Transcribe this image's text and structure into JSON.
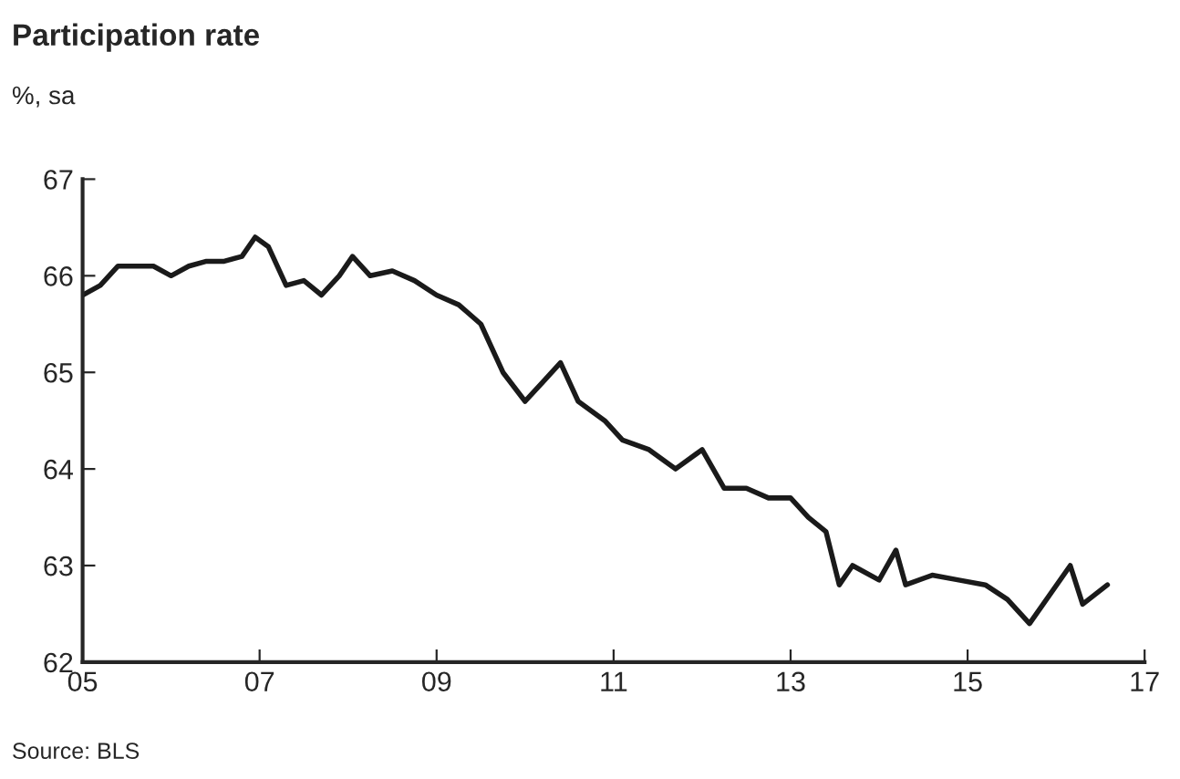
{
  "chart_data": {
    "type": "line",
    "title": "Participation rate",
    "subtitle": "%, sa",
    "x": [
      2005.0,
      2005.2,
      2005.4,
      2005.6,
      2005.8,
      2006.0,
      2006.2,
      2006.4,
      2006.6,
      2006.8,
      2006.95,
      2007.1,
      2007.3,
      2007.5,
      2007.7,
      2007.9,
      2008.05,
      2008.25,
      2008.5,
      2008.75,
      2009.0,
      2009.25,
      2009.5,
      2009.75,
      2010.0,
      2010.2,
      2010.4,
      2010.6,
      2010.9,
      2011.1,
      2011.4,
      2011.7,
      2012.0,
      2012.25,
      2012.5,
      2012.75,
      2013.0,
      2013.2,
      2013.4,
      2013.55,
      2013.7,
      2014.0,
      2014.19,
      2014.3,
      2014.6,
      2014.9,
      2015.2,
      2015.45,
      2015.7,
      2016.16,
      2016.3,
      2016.58
    ],
    "series": [
      {
        "color": "#1a1a1a",
        "values": [
          65.8,
          65.9,
          66.1,
          66.1,
          66.1,
          66.0,
          66.1,
          66.15,
          66.15,
          66.2,
          66.4,
          66.3,
          65.9,
          65.95,
          65.8,
          66.0,
          66.2,
          66.0,
          66.05,
          65.95,
          65.8,
          65.7,
          65.5,
          65.0,
          64.7,
          64.9,
          65.1,
          64.7,
          64.5,
          64.3,
          64.2,
          64.0,
          64.2,
          63.8,
          63.8,
          63.7,
          63.7,
          63.5,
          63.35,
          62.8,
          63.0,
          62.85,
          63.16,
          62.8,
          62.9,
          62.85,
          62.8,
          62.65,
          62.4,
          63.0,
          62.6,
          62.8
        ]
      }
    ],
    "xlim": [
      2005,
      2017
    ],
    "xticks": [
      {
        "value": 2005,
        "label": "05"
      },
      {
        "value": 2007,
        "label": "07"
      },
      {
        "value": 2009,
        "label": "09"
      },
      {
        "value": 2011,
        "label": "11"
      },
      {
        "value": 2013,
        "label": "13"
      },
      {
        "value": 2015,
        "label": "15"
      },
      {
        "value": 2017,
        "label": "17"
      }
    ],
    "ylim": [
      62,
      67
    ],
    "yticks": [
      62,
      63,
      64,
      65,
      66,
      67
    ],
    "annotations": [
      "Source: BLS"
    ],
    "line_style": "solid"
  }
}
